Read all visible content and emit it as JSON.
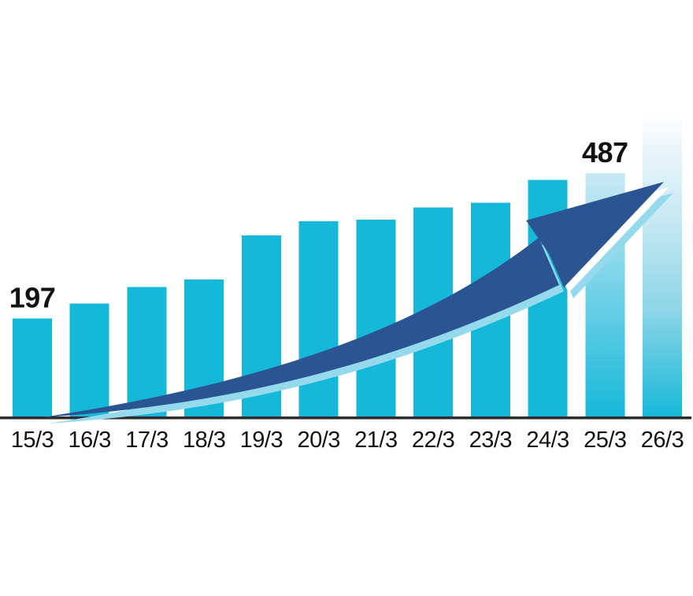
{
  "colors": {
    "bar": "#16B8D9",
    "arrow_dark": "#2B5492",
    "arrow_highlight": "#94DAEC",
    "axis_line": "#2D2D2D",
    "label_text": "#121212",
    "bar_25_gradient": {
      "stops": [
        "#C9E9F4",
        "#16B8D9"
      ],
      "offsets": [
        0,
        1
      ]
    },
    "bar_26_gradient": {
      "stops": [
        "#FFFFFF",
        "#E9F5FA",
        "#C6E8F2",
        "#8BD5E7",
        "#16B8D9"
      ],
      "offsets": [
        0,
        0.12,
        0.35,
        0.65,
        1
      ]
    }
  },
  "chart_data": {
    "type": "bar",
    "title": "",
    "xlabel": "",
    "ylabel": "",
    "legend": false,
    "gridlines": false,
    "categories": [
      "15/3",
      "16/3",
      "17/3",
      "18/3",
      "19/3",
      "20/3",
      "21/3",
      "22/3",
      "23/3",
      "24/3",
      "25/3",
      "26/3"
    ],
    "values": [
      197,
      227,
      260,
      275,
      363,
      391,
      394,
      419,
      428,
      474,
      487,
      602
    ],
    "value_labels": [
      "197",
      "",
      "",
      "",
      "",
      "",
      "",
      "",
      "",
      "",
      "487",
      ""
    ],
    "labeled_values": {
      "15/3": 197,
      "25/3": 487
    },
    "bar_styles": [
      "solid",
      "solid",
      "solid",
      "solid",
      "solid",
      "solid",
      "solid",
      "solid",
      "solid",
      "solid",
      "light-gradient",
      "fade-gradient"
    ],
    "ylim": [
      0,
      640
    ],
    "annotations": [
      "rising trend arrow overlay from first bar to last (projected, faded) bar"
    ]
  }
}
